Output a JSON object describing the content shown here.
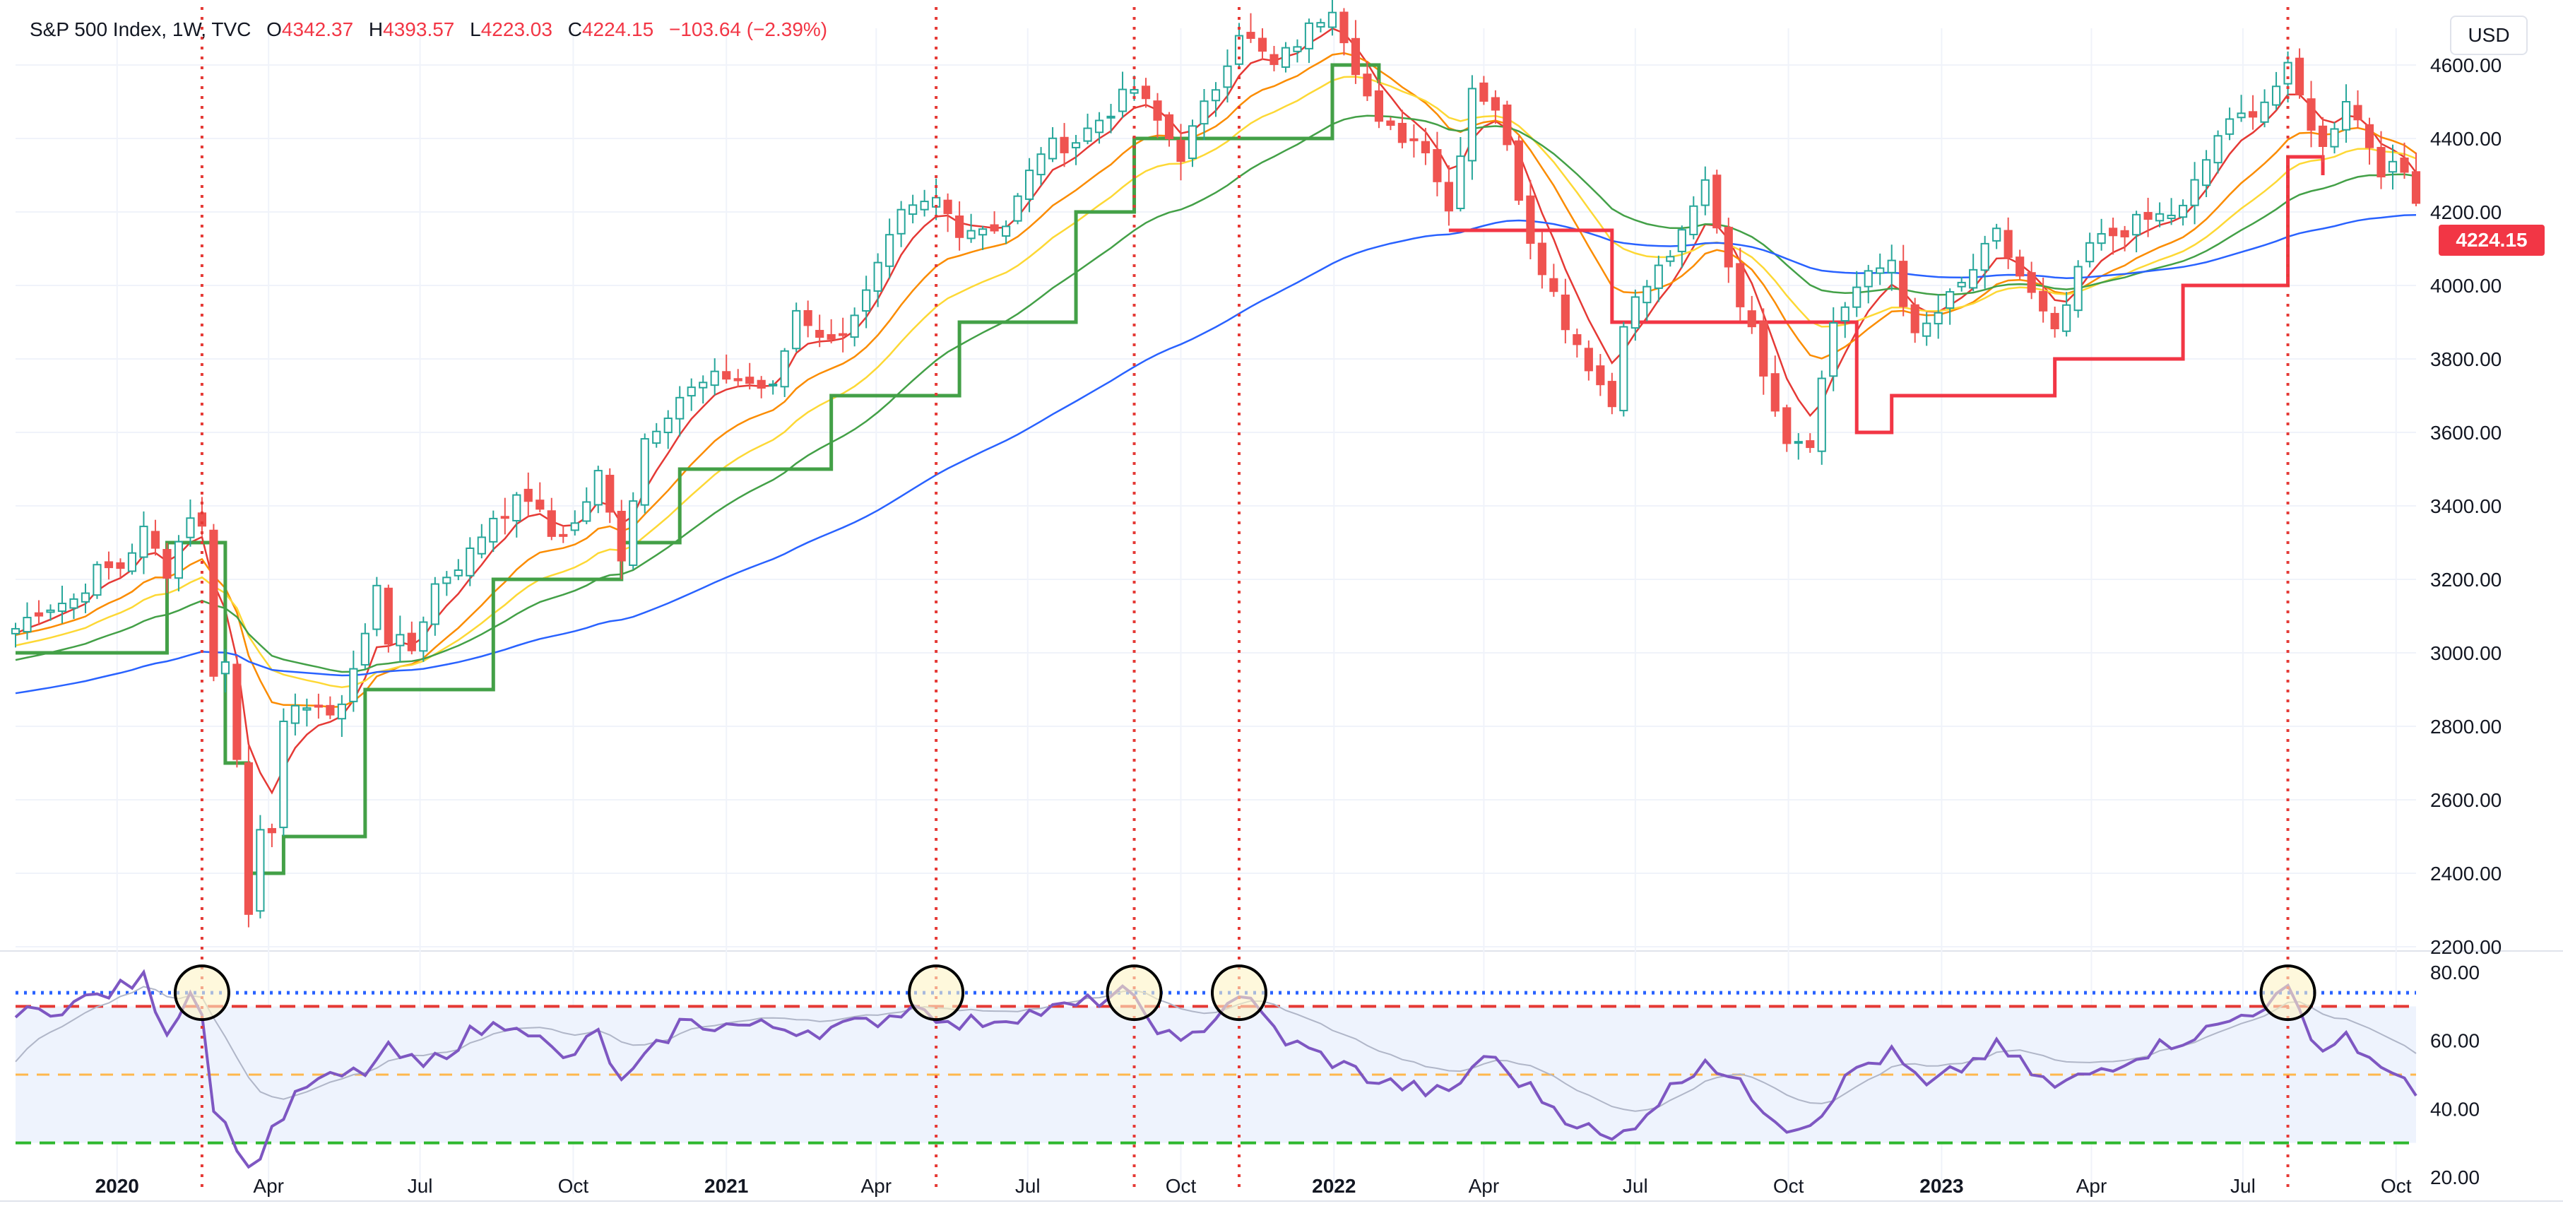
{
  "header": {
    "symbol": "S&P 500 Index, 1W, TVC",
    "open_label": "O",
    "open": "4342.37",
    "high_label": "H",
    "high": "4393.57",
    "low_label": "L",
    "low": "4223.03",
    "close_label": "C",
    "close": "4224.15",
    "change": "−103.64 (−2.39%)"
  },
  "currency": "USD",
  "last_price_tag": "4224.15",
  "colors": {
    "up": "#26a69a",
    "down": "#ef5350",
    "rsi": "#7e57c2",
    "rsi_ma": "#b0b6c8",
    "ema_fast": "#e53935",
    "ema_mid": "#fb8c00",
    "ema_slow": "#fdd835",
    "ema_long": "#43a047",
    "ema_200": "#2962ff",
    "stop_up": "#43a047",
    "stop_down": "#f23645",
    "signal_line": "#e53935",
    "circle_fill": "#fdf3c4"
  },
  "chart_data": [
    {
      "type": "candlestick",
      "title": "S&P 500 Index, 1W, TVC",
      "ylim": [
        2200,
        4700
      ],
      "yticks": [
        "2200.00",
        "2400.00",
        "2600.00",
        "2800.00",
        "3000.00",
        "3200.00",
        "3400.00",
        "3600.00",
        "3800.00",
        "4000.00",
        "4200.00",
        "4400.00",
        "4600.00"
      ],
      "xticks": [
        "2020",
        "Apr",
        "Jul",
        "Oct",
        "2021",
        "Apr",
        "Jul",
        "Oct",
        "2022",
        "Apr",
        "Jul",
        "Oct",
        "2023",
        "Apr",
        "Jul",
        "Oct"
      ],
      "x_range": [
        "2019-11-01",
        "2023-10-13"
      ],
      "x_tick_dates": [
        "2020-01-01",
        "2020-04-01",
        "2020-07-01",
        "2020-10-01",
        "2021-01-01",
        "2021-04-01",
        "2021-07-01",
        "2021-10-01",
        "2022-01-01",
        "2022-04-01",
        "2022-07-01",
        "2022-10-01",
        "2023-01-01",
        "2023-04-01",
        "2023-07-01",
        "2023-10-01"
      ],
      "close_series": [
        [
          "2019-11-01",
          3066
        ],
        [
          "2019-11-15",
          3120
        ],
        [
          "2019-12-06",
          3146
        ],
        [
          "2019-12-20",
          3221
        ],
        [
          "2020-01-03",
          3235
        ],
        [
          "2020-01-17",
          3330
        ],
        [
          "2020-01-31",
          3225
        ],
        [
          "2020-02-14",
          3380
        ],
        [
          "2020-02-21",
          3337
        ],
        [
          "2020-02-28",
          2954
        ],
        [
          "2020-03-06",
          2972
        ],
        [
          "2020-03-13",
          2711
        ],
        [
          "2020-03-20",
          2305
        ],
        [
          "2020-03-27",
          2541
        ],
        [
          "2020-04-03",
          2489
        ],
        [
          "2020-04-10",
          2790
        ],
        [
          "2020-04-17",
          2875
        ],
        [
          "2020-05-01",
          2830
        ],
        [
          "2020-05-15",
          2864
        ],
        [
          "2020-05-29",
          3044
        ],
        [
          "2020-06-05",
          3194
        ],
        [
          "2020-06-12",
          3041
        ],
        [
          "2020-06-26",
          3009
        ],
        [
          "2020-07-10",
          3185
        ],
        [
          "2020-07-31",
          3271
        ],
        [
          "2020-08-14",
          3373
        ],
        [
          "2020-09-04",
          3426
        ],
        [
          "2020-09-18",
          3319
        ],
        [
          "2020-10-02",
          3348
        ],
        [
          "2020-10-16",
          3483
        ],
        [
          "2020-10-30",
          3269
        ],
        [
          "2020-11-13",
          3585
        ],
        [
          "2020-12-04",
          3699
        ],
        [
          "2020-12-31",
          3756
        ],
        [
          "2021-01-29",
          3714
        ],
        [
          "2021-02-12",
          3934
        ],
        [
          "2021-03-05",
          3842
        ],
        [
          "2021-03-26",
          3974
        ],
        [
          "2021-04-16",
          4185
        ],
        [
          "2021-05-07",
          4232
        ],
        [
          "2021-05-21",
          4155
        ],
        [
          "2021-06-18",
          4166
        ],
        [
          "2021-07-09",
          4369
        ],
        [
          "2021-07-30",
          4395
        ],
        [
          "2021-08-27",
          4509
        ],
        [
          "2021-09-03",
          4535
        ],
        [
          "2021-10-01",
          4357
        ],
        [
          "2021-10-22",
          4544
        ],
        [
          "2021-11-05",
          4697
        ],
        [
          "2021-11-26",
          4594
        ],
        [
          "2021-12-31",
          4766
        ],
        [
          "2022-01-28",
          4431
        ],
        [
          "2022-02-25",
          4384
        ],
        [
          "2022-03-11",
          4204
        ],
        [
          "2022-03-25",
          4543
        ],
        [
          "2022-04-08",
          4488
        ],
        [
          "2022-04-29",
          4132
        ],
        [
          "2022-05-20",
          3901
        ],
        [
          "2022-06-17",
          3675
        ],
        [
          "2022-06-24",
          3912
        ],
        [
          "2022-07-29",
          4130
        ],
        [
          "2022-08-12",
          4280
        ],
        [
          "2022-08-26",
          4058
        ],
        [
          "2022-09-30",
          3586
        ],
        [
          "2022-10-14",
          3583
        ],
        [
          "2022-10-28",
          3901
        ],
        [
          "2022-11-11",
          3993
        ],
        [
          "2022-12-02",
          4072
        ],
        [
          "2022-12-16",
          3852
        ],
        [
          "2023-01-13",
          3999
        ],
        [
          "2023-02-03",
          4136
        ],
        [
          "2023-03-10",
          3862
        ],
        [
          "2023-03-31",
          4109
        ],
        [
          "2023-04-28",
          4169
        ],
        [
          "2023-05-26",
          4205
        ],
        [
          "2023-06-16",
          4410
        ],
        [
          "2023-07-14",
          4505
        ],
        [
          "2023-07-28",
          4582
        ],
        [
          "2023-08-18",
          4370
        ],
        [
          "2023-09-01",
          4515
        ],
        [
          "2023-09-22",
          4320
        ],
        [
          "2023-10-06",
          4308
        ],
        [
          "2023-10-13",
          4224
        ]
      ],
      "indicators": [
        {
          "type": "stop-line",
          "points": [
            [
              "2019-11-01",
              3000
            ],
            [
              "2020-01-31",
              3300
            ],
            [
              "2020-02-21",
              3300
            ],
            [
              "2020-03-06",
              2700
            ],
            [
              "2020-03-20",
              2400
            ],
            [
              "2020-04-10",
              2500
            ],
            [
              "2020-05-29",
              2900
            ],
            [
              "2020-08-14",
              3200
            ],
            [
              "2020-10-30",
              3300
            ],
            [
              "2020-12-04",
              3500
            ],
            [
              "2021-03-05",
              3700
            ],
            [
              "2021-05-21",
              3900
            ],
            [
              "2021-07-30",
              4200
            ],
            [
              "2021-09-03",
              4400
            ],
            [
              "2021-12-31",
              4600
            ],
            [
              "2022-01-28",
              4550
            ]
          ]
        },
        {
          "type": "stop-line",
          "points": [
            [
              "2022-03-11",
              4150
            ],
            [
              "2022-06-17",
              3900
            ],
            [
              "2022-08-26",
              3900
            ],
            [
              "2022-11-11",
              3600
            ],
            [
              "2022-12-02",
              3700
            ],
            [
              "2023-03-10",
              3800
            ],
            [
              "2023-05-26",
              4000
            ],
            [
              "2023-07-28",
              4350
            ],
            [
              "2023-08-18",
              4300
            ]
          ]
        }
      ]
    },
    {
      "type": "line",
      "title": "",
      "ylim": [
        15,
        85
      ],
      "yticks": [
        "20.00",
        "40.00",
        "60.00",
        "80.00"
      ],
      "levels": [
        74,
        70,
        50,
        30
      ],
      "x_range": [
        "2019-11-01",
        "2023-10-13"
      ],
      "series": [
        {
          "values": [
            [
              "2019-11-01",
              67
            ],
            [
              "2019-11-29",
              70
            ],
            [
              "2019-12-27",
              74
            ],
            [
              "2020-01-17",
              78
            ],
            [
              "2020-01-31",
              63
            ],
            [
              "2020-02-14",
              74
            ],
            [
              "2020-02-21",
              70
            ],
            [
              "2020-02-28",
              40
            ],
            [
              "2020-03-13",
              30
            ],
            [
              "2020-03-20",
              21
            ],
            [
              "2020-04-03",
              34
            ],
            [
              "2020-04-24",
              47
            ],
            [
              "2020-05-29",
              51
            ],
            [
              "2020-06-12",
              57
            ],
            [
              "2020-07-03",
              52
            ],
            [
              "2020-07-31",
              62
            ],
            [
              "2020-08-28",
              66
            ],
            [
              "2020-09-25",
              54
            ],
            [
              "2020-10-16",
              62
            ],
            [
              "2020-10-30",
              47
            ],
            [
              "2020-12-04",
              65
            ],
            [
              "2021-01-29",
              64
            ],
            [
              "2021-02-26",
              63
            ],
            [
              "2021-03-26",
              65
            ],
            [
              "2021-04-30",
              71
            ],
            [
              "2021-05-14",
              64
            ],
            [
              "2021-06-18",
              67
            ],
            [
              "2021-07-30",
              70
            ],
            [
              "2021-08-27",
              74
            ],
            [
              "2021-10-01",
              58
            ],
            [
              "2021-11-05",
              74
            ],
            [
              "2021-12-03",
              60
            ],
            [
              "2022-01-28",
              48
            ],
            [
              "2022-03-11",
              44
            ],
            [
              "2022-04-01",
              56
            ],
            [
              "2022-05-20",
              38
            ],
            [
              "2022-06-17",
              30
            ],
            [
              "2022-08-12",
              55
            ],
            [
              "2022-09-30",
              35
            ],
            [
              "2022-10-14",
              36
            ],
            [
              "2022-11-11",
              52
            ],
            [
              "2022-12-02",
              56
            ],
            [
              "2022-12-23",
              46
            ],
            [
              "2023-02-03",
              58
            ],
            [
              "2023-03-10",
              46
            ],
            [
              "2023-04-28",
              56
            ],
            [
              "2023-06-16",
              64
            ],
            [
              "2023-07-28",
              74
            ],
            [
              "2023-08-18",
              57
            ],
            [
              "2023-09-01",
              62
            ],
            [
              "2023-09-22",
              50
            ],
            [
              "2023-10-06",
              51
            ],
            [
              "2023-10-13",
              44
            ]
          ]
        }
      ]
    }
  ],
  "signal_dates": [
    "2020-02-21",
    "2021-05-07",
    "2021-09-03",
    "2021-11-05",
    "2023-07-28"
  ]
}
